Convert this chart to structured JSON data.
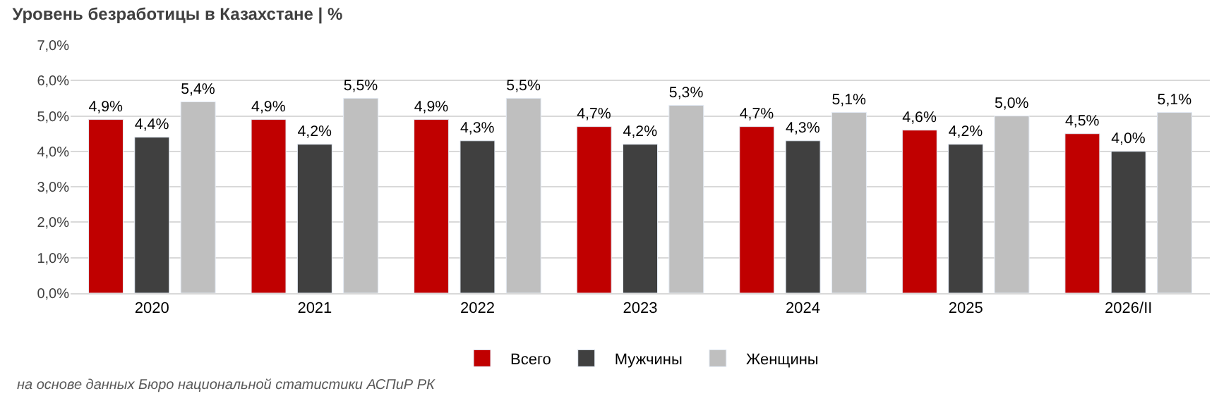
{
  "chart_data": {
    "type": "bar",
    "title": "Уровень безработицы в Казахстане | %",
    "categories": [
      "2020",
      "2021",
      "2022",
      "2023",
      "2024",
      "2025",
      "2026/II"
    ],
    "series": [
      {
        "name": "Всего",
        "color": "#c00000",
        "values": [
          4.9,
          4.9,
          4.9,
          4.7,
          4.7,
          4.6,
          4.5
        ],
        "value_labels": [
          "4,9%",
          "4,9%",
          "4,9%",
          "4,7%",
          "4,7%",
          "4,6%",
          "4,5%"
        ]
      },
      {
        "name": "Мужчины",
        "color": "#404040",
        "values": [
          4.4,
          4.2,
          4.3,
          4.2,
          4.3,
          4.2,
          4.0
        ],
        "value_labels": [
          "4,4%",
          "4,2%",
          "4,3%",
          "4,2%",
          "4,3%",
          "4,2%",
          "4,0%"
        ]
      },
      {
        "name": "Женщины",
        "color": "#bfbfbf",
        "values": [
          5.4,
          5.5,
          5.5,
          5.3,
          5.1,
          5.0,
          5.1
        ],
        "value_labels": [
          "5,4%",
          "5,5%",
          "5,5%",
          "5,3%",
          "5,1%",
          "5,0%",
          "5,1%"
        ]
      }
    ],
    "ylim": [
      0,
      7
    ],
    "yticks": [
      {
        "value": 0,
        "label": "0,0%"
      },
      {
        "value": 1,
        "label": "1,0%"
      },
      {
        "value": 2,
        "label": "2,0%"
      },
      {
        "value": 3,
        "label": "3,0%"
      },
      {
        "value": 4,
        "label": "4,0%"
      },
      {
        "value": 5,
        "label": "5,0%"
      },
      {
        "value": 6,
        "label": "6,0%"
      },
      {
        "value": 7,
        "label": "7,0%"
      }
    ],
    "grid": "y",
    "legend": "bottom",
    "annotations": [
      "на основе данных Бюро национальной статистики АСПиР РК"
    ]
  }
}
